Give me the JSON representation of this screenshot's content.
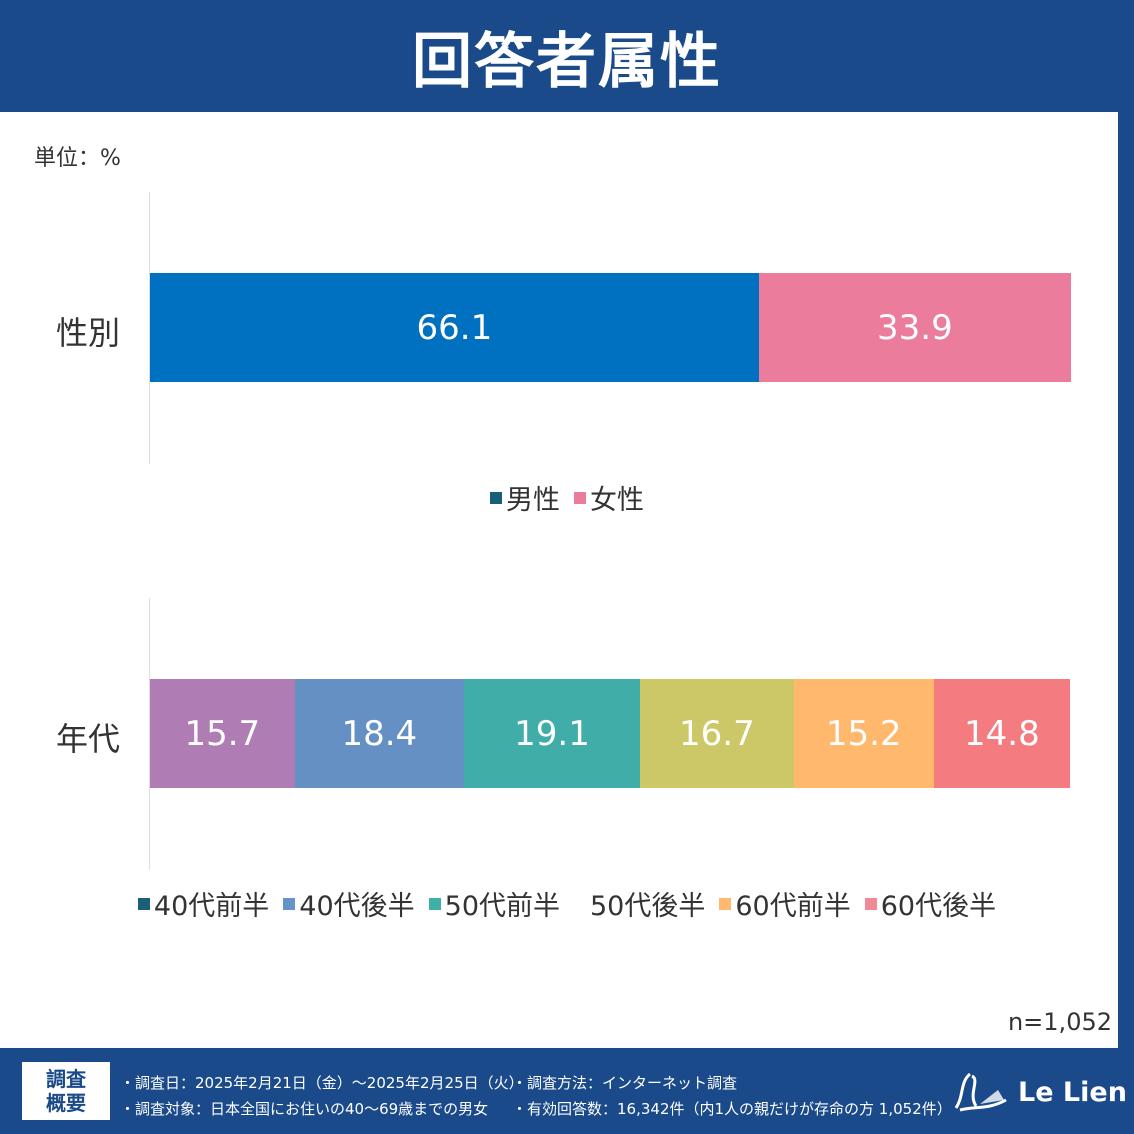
{
  "header": {
    "title": "回答者属性"
  },
  "unit": "単位：%",
  "n_label": "n=1,052",
  "chart_data": [
    {
      "type": "bar",
      "stacked": true,
      "orientation": "horizontal",
      "category": "性別",
      "xlim": [
        0,
        100
      ],
      "series": [
        {
          "name": "男性",
          "values": [
            66.1
          ],
          "color": "#0070c0"
        },
        {
          "name": "女性",
          "values": [
            33.9
          ],
          "color": "#ec7c9c"
        }
      ],
      "legend_colors": [
        "#1a5f7a",
        "#ec7c9c"
      ],
      "legend": "bottom"
    },
    {
      "type": "bar",
      "stacked": true,
      "orientation": "horizontal",
      "category": "年代",
      "xlim": [
        0,
        100
      ],
      "series": [
        {
          "name": "40代前半",
          "values": [
            15.7
          ],
          "color": "#b07cb4"
        },
        {
          "name": "40代後半",
          "values": [
            18.4
          ],
          "color": "#6490c4"
        },
        {
          "name": "50代前半",
          "values": [
            19.1
          ],
          "color": "#40ada8"
        },
        {
          "name": "50代後半",
          "values": [
            16.7
          ],
          "color": "#ccc868"
        },
        {
          "name": "60代前半",
          "values": [
            15.2
          ],
          "color": "#ffb86c"
        },
        {
          "name": "60代後半",
          "values": [
            14.8
          ],
          "color": "#f47c80"
        }
      ],
      "legend_colors": [
        "#1a5f7a",
        "#6694c8",
        "#3fb0a8",
        "#ffffff",
        "#ffb870",
        "#f08a94"
      ],
      "legend": "bottom"
    }
  ],
  "footer": {
    "box_line1": "調査",
    "box_line2": "概要",
    "date": "・調査日：2025年2月21日（金）～2025年2月25日（火）",
    "method": "・調査方法：インターネット調査",
    "target": "・調査対象：日本全国にお住いの40～69歳までの男女",
    "responses": "・有効回答数：16,342件（内1人の親だけが存命の方 1,052件）",
    "logo": "Le Lien"
  }
}
